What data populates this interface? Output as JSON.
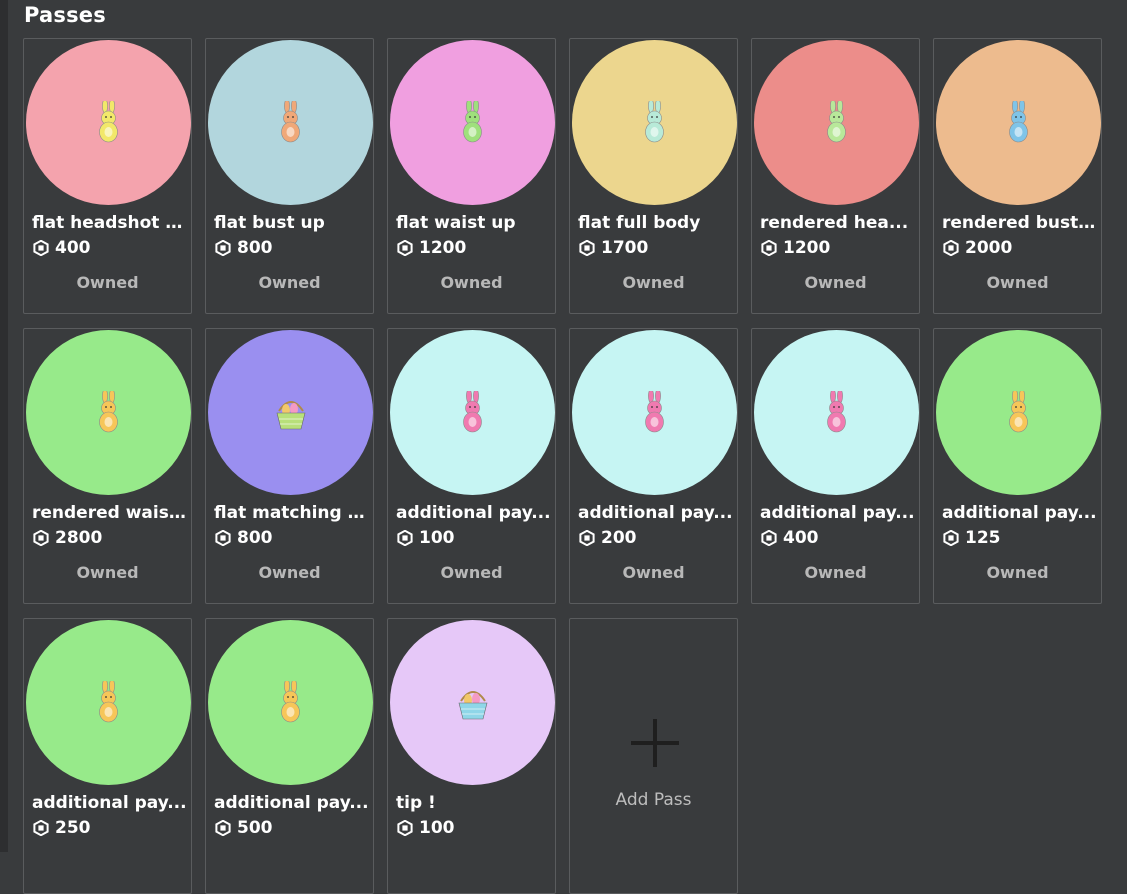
{
  "page": {
    "title": "Passes"
  },
  "passes": [
    {
      "name": "flat headshot i...",
      "price": "400",
      "status": "Owned",
      "color": "#f4a3ad",
      "icon": "bunny-icon",
      "icon_color": "#f2e86a"
    },
    {
      "name": "flat bust up",
      "price": "800",
      "status": "Owned",
      "color": "#b2d6dd",
      "icon": "bunny-icon",
      "icon_color": "#f0a878"
    },
    {
      "name": "flat waist up",
      "price": "1200",
      "status": "Owned",
      "color": "#f09fe0",
      "icon": "bunny-icon",
      "icon_color": "#9fe07c"
    },
    {
      "name": "flat full body",
      "price": "1700",
      "status": "Owned",
      "color": "#ecd68e",
      "icon": "bunny-icon",
      "icon_color": "#b8ead8"
    },
    {
      "name": "rendered hea...",
      "price": "1200",
      "status": "Owned",
      "color": "#ec8d8a",
      "icon": "bunny-icon",
      "icon_color": "#b8e89a"
    },
    {
      "name": "rendered bust...",
      "price": "2000",
      "status": "Owned",
      "color": "#edbb8e",
      "icon": "bunny-icon",
      "icon_color": "#7fc4e8"
    },
    {
      "name": "rendered wais...",
      "price": "2800",
      "status": "Owned",
      "color": "#97ea8a",
      "icon": "bunny-icon",
      "icon_color": "#f6c659"
    },
    {
      "name": "flat matching i...",
      "price": "800",
      "status": "Owned",
      "color": "#9a8ff0",
      "icon": "easter-basket-icon",
      "icon_color": "#b8e07a"
    },
    {
      "name": "additional pay...",
      "price": "100",
      "status": "Owned",
      "color": "#c6f5f3",
      "icon": "bunny-icon",
      "icon_color": "#f07ab0"
    },
    {
      "name": "additional pay...",
      "price": "200",
      "status": "Owned",
      "color": "#c6f5f3",
      "icon": "bunny-icon",
      "icon_color": "#f07ab0"
    },
    {
      "name": "additional pay...",
      "price": "400",
      "status": "Owned",
      "color": "#c6f5f3",
      "icon": "bunny-icon",
      "icon_color": "#f07ab0"
    },
    {
      "name": "additional pay...",
      "price": "125",
      "status": "Owned",
      "color": "#97ea8a",
      "icon": "bunny-icon",
      "icon_color": "#f6c659"
    },
    {
      "name": "additional pay...",
      "price": "250",
      "status": "",
      "color": "#97ea8a",
      "icon": "bunny-icon",
      "icon_color": "#f6c659"
    },
    {
      "name": "additional pay...",
      "price": "500",
      "status": "",
      "color": "#97ea8a",
      "icon": "bunny-icon",
      "icon_color": "#f6c659"
    },
    {
      "name": "tip !",
      "price": "100",
      "status": "",
      "color": "#e6c8f8",
      "icon": "easter-basket-icon",
      "icon_color": "#8fd6e8"
    }
  ],
  "add_pass": {
    "label": "Add Pass",
    "icon": "plus-icon"
  },
  "currency_icon": "robux-icon"
}
